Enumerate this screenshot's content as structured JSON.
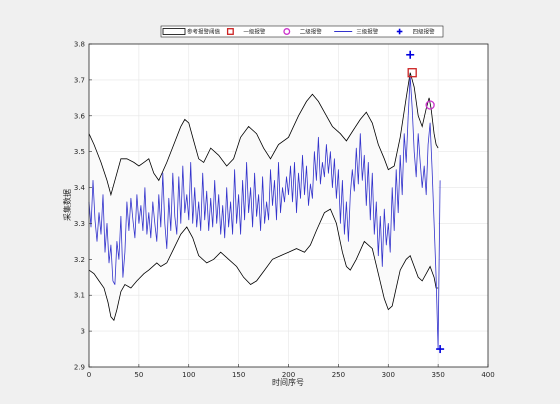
{
  "chart_data": {
    "type": "line",
    "title": "",
    "xlabel": "时间序号",
    "ylabel": "采集数据",
    "xlim": [
      0,
      400
    ],
    "ylim": [
      2.9,
      3.8
    ],
    "xticks": [
      0,
      50,
      100,
      150,
      200,
      250,
      300,
      350,
      400
    ],
    "yticks": [
      2.9,
      3.0,
      3.1,
      3.2,
      3.3,
      3.4,
      3.5,
      3.6,
      3.7,
      3.8
    ],
    "xtick_labels": [
      "0",
      "50",
      "100",
      "150",
      "200",
      "250",
      "300",
      "350",
      "400"
    ],
    "ytick_labels": [
      "2.9",
      "3",
      "3.1",
      "3.2",
      "3.3",
      "3.4",
      "3.5",
      "3.6",
      "3.7",
      "3.8"
    ],
    "grid": true,
    "legend_position": "top",
    "legend": [
      {
        "label": "参考报警阈值",
        "marker": "band",
        "color": "#000000"
      },
      {
        "label": "一级报警",
        "marker": "square",
        "color": "#cc2222"
      },
      {
        "label": "二级报警",
        "marker": "circle",
        "color": "#cc33cc"
      },
      {
        "label": "三级报警",
        "marker": "line",
        "color": "#3333cc"
      },
      {
        "label": "四级报警",
        "marker": "plus",
        "color": "#0000dd"
      }
    ],
    "band_upper": {
      "name": "参考报警阈值",
      "points": [
        [
          0,
          3.55
        ],
        [
          5,
          3.52
        ],
        [
          12,
          3.47
        ],
        [
          18,
          3.42
        ],
        [
          22,
          3.38
        ],
        [
          27,
          3.43
        ],
        [
          32,
          3.48
        ],
        [
          38,
          3.48
        ],
        [
          45,
          3.47
        ],
        [
          50,
          3.46
        ],
        [
          55,
          3.47
        ],
        [
          60,
          3.48
        ],
        [
          65,
          3.44
        ],
        [
          70,
          3.42
        ],
        [
          78,
          3.47
        ],
        [
          85,
          3.52
        ],
        [
          92,
          3.57
        ],
        [
          96,
          3.59
        ],
        [
          100,
          3.58
        ],
        [
          105,
          3.53
        ],
        [
          110,
          3.48
        ],
        [
          115,
          3.47
        ],
        [
          122,
          3.51
        ],
        [
          130,
          3.49
        ],
        [
          138,
          3.46
        ],
        [
          145,
          3.48
        ],
        [
          152,
          3.54
        ],
        [
          160,
          3.57
        ],
        [
          168,
          3.55
        ],
        [
          175,
          3.51
        ],
        [
          182,
          3.48
        ],
        [
          190,
          3.52
        ],
        [
          200,
          3.54
        ],
        [
          210,
          3.6
        ],
        [
          218,
          3.64
        ],
        [
          224,
          3.66
        ],
        [
          230,
          3.64
        ],
        [
          236,
          3.61
        ],
        [
          244,
          3.57
        ],
        [
          252,
          3.55
        ],
        [
          258,
          3.53
        ],
        [
          265,
          3.56
        ],
        [
          272,
          3.59
        ],
        [
          278,
          3.61
        ],
        [
          284,
          3.58
        ],
        [
          290,
          3.52
        ],
        [
          296,
          3.48
        ],
        [
          300,
          3.45
        ],
        [
          306,
          3.46
        ],
        [
          312,
          3.54
        ],
        [
          318,
          3.65
        ],
        [
          322,
          3.72
        ],
        [
          326,
          3.68
        ],
        [
          330,
          3.6
        ],
        [
          334,
          3.57
        ],
        [
          338,
          3.62
        ],
        [
          341,
          3.65
        ],
        [
          343,
          3.62
        ],
        [
          346,
          3.55
        ],
        [
          348,
          3.52
        ],
        [
          350,
          3.51
        ]
      ]
    },
    "band_lower": {
      "name": "参考报警阈值",
      "points": [
        [
          0,
          3.17
        ],
        [
          5,
          3.16
        ],
        [
          10,
          3.14
        ],
        [
          15,
          3.12
        ],
        [
          19,
          3.08
        ],
        [
          22,
          3.04
        ],
        [
          25,
          3.03
        ],
        [
          28,
          3.06
        ],
        [
          32,
          3.11
        ],
        [
          36,
          3.13
        ],
        [
          42,
          3.12
        ],
        [
          48,
          3.14
        ],
        [
          55,
          3.16
        ],
        [
          60,
          3.17
        ],
        [
          68,
          3.19
        ],
        [
          72,
          3.18
        ],
        [
          78,
          3.19
        ],
        [
          85,
          3.23
        ],
        [
          92,
          3.27
        ],
        [
          98,
          3.29
        ],
        [
          104,
          3.26
        ],
        [
          110,
          3.21
        ],
        [
          118,
          3.19
        ],
        [
          125,
          3.2
        ],
        [
          132,
          3.22
        ],
        [
          140,
          3.2
        ],
        [
          148,
          3.18
        ],
        [
          155,
          3.15
        ],
        [
          162,
          3.13
        ],
        [
          168,
          3.14
        ],
        [
          176,
          3.17
        ],
        [
          184,
          3.2
        ],
        [
          192,
          3.21
        ],
        [
          200,
          3.22
        ],
        [
          208,
          3.23
        ],
        [
          216,
          3.22
        ],
        [
          222,
          3.24
        ],
        [
          228,
          3.28
        ],
        [
          236,
          3.33
        ],
        [
          242,
          3.34
        ],
        [
          248,
          3.3
        ],
        [
          254,
          3.22
        ],
        [
          258,
          3.18
        ],
        [
          262,
          3.17
        ],
        [
          268,
          3.2
        ],
        [
          276,
          3.25
        ],
        [
          284,
          3.23
        ],
        [
          290,
          3.16
        ],
        [
          296,
          3.09
        ],
        [
          300,
          3.06
        ],
        [
          304,
          3.07
        ],
        [
          308,
          3.12
        ],
        [
          312,
          3.17
        ],
        [
          318,
          3.2
        ],
        [
          322,
          3.21
        ],
        [
          326,
          3.18
        ],
        [
          330,
          3.15
        ],
        [
          334,
          3.14
        ],
        [
          338,
          3.16
        ],
        [
          342,
          3.18
        ],
        [
          346,
          3.15
        ],
        [
          348,
          3.12
        ],
        [
          350,
          3.12
        ]
      ]
    },
    "series": [
      {
        "name": "三级报警",
        "points": [
          [
            0,
            3.36
          ],
          [
            2,
            3.29
          ],
          [
            4,
            3.42
          ],
          [
            6,
            3.31
          ],
          [
            8,
            3.25
          ],
          [
            10,
            3.33
          ],
          [
            12,
            3.27
          ],
          [
            14,
            3.38
          ],
          [
            16,
            3.22
          ],
          [
            18,
            3.3
          ],
          [
            20,
            3.19
          ],
          [
            22,
            3.24
          ],
          [
            24,
            3.14
          ],
          [
            26,
            3.13
          ],
          [
            28,
            3.25
          ],
          [
            30,
            3.2
          ],
          [
            32,
            3.32
          ],
          [
            34,
            3.15
          ],
          [
            36,
            3.22
          ],
          [
            38,
            3.36
          ],
          [
            40,
            3.28
          ],
          [
            42,
            3.37
          ],
          [
            44,
            3.31
          ],
          [
            46,
            3.26
          ],
          [
            48,
            3.38
          ],
          [
            50,
            3.3
          ],
          [
            52,
            3.35
          ],
          [
            54,
            3.28
          ],
          [
            56,
            3.4
          ],
          [
            58,
            3.27
          ],
          [
            60,
            3.33
          ],
          [
            62,
            3.26
          ],
          [
            64,
            3.36
          ],
          [
            66,
            3.3
          ],
          [
            68,
            3.25
          ],
          [
            70,
            3.38
          ],
          [
            72,
            3.29
          ],
          [
            74,
            3.44
          ],
          [
            76,
            3.3
          ],
          [
            78,
            3.23
          ],
          [
            80,
            3.37
          ],
          [
            82,
            3.28
          ],
          [
            84,
            3.44
          ],
          [
            86,
            3.32
          ],
          [
            88,
            3.27
          ],
          [
            90,
            3.43
          ],
          [
            92,
            3.3
          ],
          [
            94,
            3.46
          ],
          [
            96,
            3.33
          ],
          [
            98,
            3.38
          ],
          [
            100,
            3.31
          ],
          [
            102,
            3.47
          ],
          [
            104,
            3.3
          ],
          [
            106,
            3.4
          ],
          [
            108,
            3.29
          ],
          [
            110,
            3.36
          ],
          [
            112,
            3.28
          ],
          [
            114,
            3.44
          ],
          [
            116,
            3.31
          ],
          [
            118,
            3.39
          ],
          [
            120,
            3.28
          ],
          [
            122,
            3.37
          ],
          [
            124,
            3.29
          ],
          [
            126,
            3.42
          ],
          [
            128,
            3.3
          ],
          [
            130,
            3.38
          ],
          [
            132,
            3.27
          ],
          [
            134,
            3.35
          ],
          [
            136,
            3.26
          ],
          [
            138,
            3.4
          ],
          [
            140,
            3.29
          ],
          [
            142,
            3.36
          ],
          [
            144,
            3.27
          ],
          [
            146,
            3.45
          ],
          [
            148,
            3.3
          ],
          [
            150,
            3.38
          ],
          [
            152,
            3.27
          ],
          [
            154,
            3.42
          ],
          [
            156,
            3.31
          ],
          [
            158,
            3.47
          ],
          [
            160,
            3.33
          ],
          [
            162,
            3.4
          ],
          [
            164,
            3.29
          ],
          [
            166,
            3.44
          ],
          [
            168,
            3.32
          ],
          [
            170,
            3.38
          ],
          [
            172,
            3.28
          ],
          [
            174,
            3.43
          ],
          [
            176,
            3.3
          ],
          [
            178,
            3.36
          ],
          [
            180,
            3.31
          ],
          [
            182,
            3.45
          ],
          [
            184,
            3.35
          ],
          [
            186,
            3.42
          ],
          [
            188,
            3.31
          ],
          [
            190,
            3.47
          ],
          [
            192,
            3.33
          ],
          [
            194,
            3.4
          ],
          [
            196,
            3.36
          ],
          [
            198,
            3.43
          ],
          [
            200,
            3.38
          ],
          [
            202,
            3.46
          ],
          [
            204,
            3.36
          ],
          [
            206,
            3.47
          ],
          [
            208,
            3.33
          ],
          [
            210,
            3.44
          ],
          [
            212,
            3.37
          ],
          [
            214,
            3.49
          ],
          [
            216,
            3.38
          ],
          [
            218,
            3.46
          ],
          [
            220,
            3.35
          ],
          [
            222,
            3.41
          ],
          [
            224,
            3.37
          ],
          [
            226,
            3.5
          ],
          [
            228,
            3.42
          ],
          [
            230,
            3.54
          ],
          [
            232,
            3.41
          ],
          [
            234,
            3.47
          ],
          [
            236,
            3.43
          ],
          [
            238,
            3.52
          ],
          [
            240,
            3.44
          ],
          [
            242,
            3.5
          ],
          [
            244,
            3.4
          ],
          [
            246,
            3.48
          ],
          [
            248,
            3.37
          ],
          [
            250,
            3.45
          ],
          [
            252,
            3.3
          ],
          [
            254,
            3.42
          ],
          [
            256,
            3.27
          ],
          [
            258,
            3.36
          ],
          [
            260,
            3.25
          ],
          [
            262,
            3.38
          ],
          [
            264,
            3.45
          ],
          [
            266,
            3.39
          ],
          [
            268,
            3.51
          ],
          [
            270,
            3.41
          ],
          [
            272,
            3.55
          ],
          [
            274,
            3.42
          ],
          [
            276,
            3.49
          ],
          [
            278,
            3.35
          ],
          [
            280,
            3.47
          ],
          [
            282,
            3.31
          ],
          [
            284,
            3.44
          ],
          [
            286,
            3.27
          ],
          [
            288,
            3.36
          ],
          [
            290,
            3.21
          ],
          [
            292,
            3.32
          ],
          [
            294,
            3.18
          ],
          [
            296,
            3.34
          ],
          [
            298,
            3.24
          ],
          [
            300,
            3.3
          ],
          [
            302,
            3.22
          ],
          [
            304,
            3.4
          ],
          [
            306,
            3.28
          ],
          [
            308,
            3.45
          ],
          [
            310,
            3.33
          ],
          [
            312,
            3.49
          ],
          [
            314,
            3.38
          ],
          [
            316,
            3.55
          ],
          [
            318,
            3.47
          ],
          [
            320,
            3.6
          ],
          [
            322,
            3.71
          ],
          [
            324,
            3.62
          ],
          [
            326,
            3.5
          ],
          [
            328,
            3.43
          ],
          [
            330,
            3.55
          ],
          [
            332,
            3.47
          ],
          [
            334,
            3.4
          ],
          [
            336,
            3.46
          ],
          [
            338,
            3.38
          ],
          [
            340,
            3.52
          ],
          [
            342,
            3.58
          ],
          [
            344,
            3.45
          ],
          [
            346,
            3.3
          ],
          [
            348,
            3.15
          ],
          [
            350,
            2.95
          ],
          [
            352,
            3.42
          ]
        ]
      }
    ],
    "alarm_points": [
      {
        "level": "一级报警",
        "x": 324,
        "y": 3.72,
        "marker": "square"
      },
      {
        "level": "二级报警",
        "x": 342,
        "y": 3.63,
        "marker": "circle"
      },
      {
        "level": "四级报警",
        "x": 322,
        "y": 3.77,
        "marker": "plus"
      },
      {
        "level": "四级报警",
        "x": 352,
        "y": 2.95,
        "marker": "plus"
      }
    ]
  },
  "colors": {
    "figure_bg": "#f0f0f0",
    "axes_bg": "#ffffff",
    "band_fill": "#fafafa",
    "band_stroke": "#000000",
    "series": "#3333cc",
    "grid": "#e6e6e6"
  }
}
